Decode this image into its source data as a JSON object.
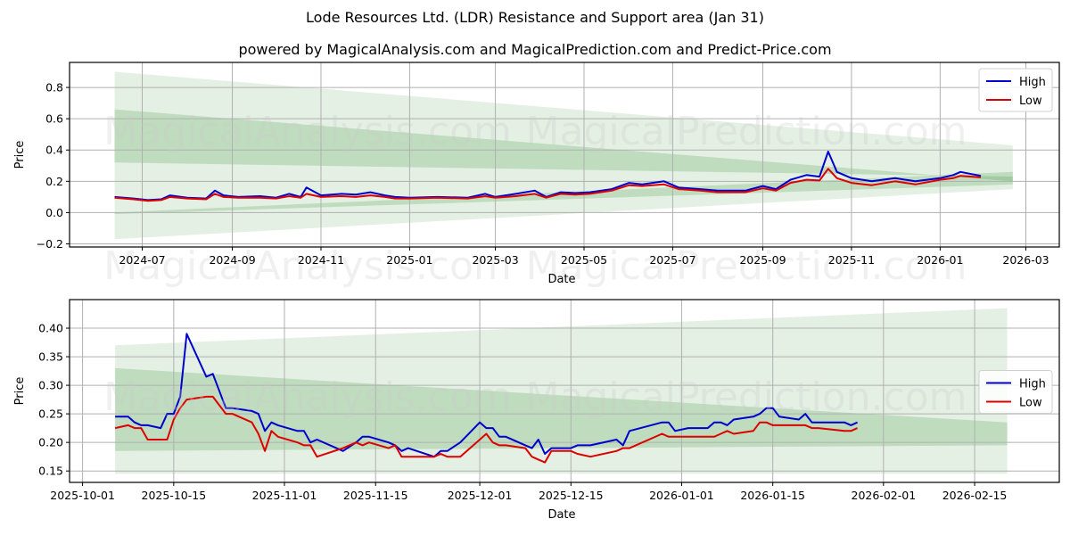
{
  "header": {
    "title": "Lode Resources Ltd. (LDR) Resistance and Support area (Jan 31)",
    "subtitle": "powered by MagicalAnalysis.com and MagicalPrediction.com and Predict-Price.com"
  },
  "watermarks": [
    "MagicalAnalysis.com",
    "MagicalPrediction.com"
  ],
  "colors": {
    "high": "#0000cc",
    "low": "#dd0000",
    "band": "#2e8b2e",
    "grid": "#b0b0b0"
  },
  "chart_data": [
    {
      "type": "line",
      "title": "",
      "xlabel": "Date",
      "ylabel": "Price",
      "ylim": [
        -0.22,
        0.96
      ],
      "xlim": [
        "2024-05-12",
        "2026-03-24"
      ],
      "grid": true,
      "legend_position": "upper right",
      "y_ticks": [
        "−0.2",
        "0.0",
        "0.2",
        "0.4",
        "0.6",
        "0.8"
      ],
      "y_tick_values": [
        -0.2,
        0.0,
        0.2,
        0.4,
        0.6,
        0.8
      ],
      "x_ticks": [
        "2024-07",
        "2024-09",
        "2024-11",
        "2025-01",
        "2025-03",
        "2025-05",
        "2025-07",
        "2025-09",
        "2025-11",
        "2026-01",
        "2026-03"
      ],
      "x_tick_dates": [
        "2024-07-01",
        "2024-09-01",
        "2024-11-01",
        "2025-01-01",
        "2025-03-01",
        "2025-05-01",
        "2025-07-01",
        "2025-09-01",
        "2025-11-01",
        "2026-01-01",
        "2026-03-01"
      ],
      "legend": [
        "High",
        "Low"
      ],
      "bands": [
        {
          "name": "outer",
          "x": [
            "2024-06-12",
            "2026-02-20"
          ],
          "upper": [
            0.9,
            0.43
          ],
          "lower": [
            -0.17,
            0.15
          ]
        },
        {
          "name": "resistance",
          "x": [
            "2024-06-12",
            "2026-02-20"
          ],
          "upper": [
            0.66,
            0.2
          ],
          "lower": [
            0.32,
            0.23
          ]
        },
        {
          "name": "support",
          "x": [
            "2024-06-12",
            "2026-02-20"
          ],
          "upper": [
            0.0,
            0.26
          ],
          "lower": [
            -0.01,
            0.18
          ]
        }
      ],
      "series": [
        {
          "name": "High",
          "x": [
            "2024-06-12",
            "2024-06-25",
            "2024-07-05",
            "2024-07-14",
            "2024-07-20",
            "2024-08-01",
            "2024-08-14",
            "2024-08-20",
            "2024-08-26",
            "2024-09-05",
            "2024-09-20",
            "2024-10-01",
            "2024-10-10",
            "2024-10-18",
            "2024-10-22",
            "2024-11-01",
            "2024-11-15",
            "2024-11-25",
            "2024-12-05",
            "2024-12-15",
            "2024-12-22",
            "2025-01-01",
            "2025-01-20",
            "2025-02-10",
            "2025-02-22",
            "2025-03-01",
            "2025-03-15",
            "2025-03-28",
            "2025-04-05",
            "2025-04-15",
            "2025-04-25",
            "2025-05-05",
            "2025-05-20",
            "2025-06-01",
            "2025-06-10",
            "2025-06-25",
            "2025-07-05",
            "2025-07-20",
            "2025-08-01",
            "2025-08-20",
            "2025-09-01",
            "2025-09-10",
            "2025-09-20",
            "2025-10-01",
            "2025-10-10",
            "2025-10-16",
            "2025-10-22",
            "2025-11-01",
            "2025-11-15",
            "2025-12-01",
            "2025-12-15",
            "2026-01-01",
            "2026-01-10",
            "2026-01-15",
            "2026-01-29"
          ],
          "values": [
            0.1,
            0.09,
            0.08,
            0.085,
            0.11,
            0.095,
            0.09,
            0.14,
            0.11,
            0.1,
            0.105,
            0.095,
            0.12,
            0.1,
            0.16,
            0.11,
            0.12,
            0.115,
            0.13,
            0.11,
            0.1,
            0.095,
            0.1,
            0.095,
            0.12,
            0.1,
            0.12,
            0.14,
            0.1,
            0.13,
            0.125,
            0.13,
            0.15,
            0.19,
            0.18,
            0.2,
            0.16,
            0.15,
            0.14,
            0.14,
            0.17,
            0.15,
            0.21,
            0.24,
            0.23,
            0.39,
            0.26,
            0.22,
            0.2,
            0.22,
            0.2,
            0.22,
            0.24,
            0.26,
            0.235
          ]
        },
        {
          "name": "Low",
          "x": [
            "2024-06-12",
            "2024-06-25",
            "2024-07-05",
            "2024-07-14",
            "2024-07-20",
            "2024-08-01",
            "2024-08-14",
            "2024-08-20",
            "2024-08-26",
            "2024-09-05",
            "2024-09-20",
            "2024-10-01",
            "2024-10-10",
            "2024-10-18",
            "2024-10-22",
            "2024-11-01",
            "2024-11-15",
            "2024-11-25",
            "2024-12-05",
            "2024-12-15",
            "2024-12-22",
            "2025-01-01",
            "2025-01-20",
            "2025-02-10",
            "2025-02-22",
            "2025-03-01",
            "2025-03-15",
            "2025-03-28",
            "2025-04-05",
            "2025-04-15",
            "2025-04-25",
            "2025-05-05",
            "2025-05-20",
            "2025-06-01",
            "2025-06-10",
            "2025-06-25",
            "2025-07-05",
            "2025-07-20",
            "2025-08-01",
            "2025-08-20",
            "2025-09-01",
            "2025-09-10",
            "2025-09-20",
            "2025-10-01",
            "2025-10-10",
            "2025-10-16",
            "2025-10-22",
            "2025-11-01",
            "2025-11-15",
            "2025-12-01",
            "2025-12-15",
            "2026-01-01",
            "2026-01-10",
            "2026-01-15",
            "2026-01-29"
          ],
          "values": [
            0.095,
            0.085,
            0.075,
            0.08,
            0.1,
            0.09,
            0.085,
            0.12,
            0.1,
            0.095,
            0.095,
            0.09,
            0.105,
            0.095,
            0.12,
            0.1,
            0.105,
            0.1,
            0.11,
            0.1,
            0.09,
            0.09,
            0.095,
            0.09,
            0.105,
            0.095,
            0.105,
            0.12,
            0.095,
            0.12,
            0.115,
            0.12,
            0.14,
            0.175,
            0.17,
            0.18,
            0.15,
            0.14,
            0.13,
            0.13,
            0.155,
            0.14,
            0.19,
            0.21,
            0.205,
            0.28,
            0.22,
            0.19,
            0.175,
            0.2,
            0.18,
            0.21,
            0.22,
            0.235,
            0.225
          ]
        }
      ]
    },
    {
      "type": "line",
      "title": "",
      "xlabel": "Date",
      "ylabel": "Price",
      "ylim": [
        0.13,
        0.45
      ],
      "xlim": [
        "2025-09-29",
        "2026-02-28"
      ],
      "grid": true,
      "legend_position": "center right",
      "y_ticks": [
        "0.15",
        "0.20",
        "0.25",
        "0.30",
        "0.35",
        "0.40"
      ],
      "y_tick_values": [
        0.15,
        0.2,
        0.25,
        0.3,
        0.35,
        0.4
      ],
      "x_ticks": [
        "2025-10-01",
        "2025-10-15",
        "2025-11-01",
        "2025-11-15",
        "2025-12-01",
        "2025-12-15",
        "2026-01-01",
        "2026-01-15",
        "2026-02-01",
        "2026-02-15"
      ],
      "x_tick_dates": [
        "2025-10-01",
        "2025-10-15",
        "2025-11-01",
        "2025-11-15",
        "2025-12-01",
        "2025-12-15",
        "2026-01-01",
        "2026-01-15",
        "2026-02-01",
        "2026-02-15"
      ],
      "legend": [
        "High",
        "Low"
      ],
      "bands": [
        {
          "name": "outer",
          "x": [
            "2025-10-06",
            "2026-02-20"
          ],
          "upper": [
            0.37,
            0.435
          ],
          "lower": [
            0.145,
            0.145
          ]
        },
        {
          "name": "resistance",
          "x": [
            "2025-10-06",
            "2026-02-20"
          ],
          "upper": [
            0.33,
            0.235
          ],
          "lower": [
            0.3,
            0.215
          ]
        },
        {
          "name": "support",
          "x": [
            "2025-10-06",
            "2026-02-20"
          ],
          "upper": [
            0.3,
            0.215
          ],
          "lower": [
            0.185,
            0.195
          ]
        }
      ],
      "series": [
        {
          "name": "High",
          "x": [
            "2025-10-06",
            "2025-10-08",
            "2025-10-09",
            "2025-10-10",
            "2025-10-11",
            "2025-10-13",
            "2025-10-14",
            "2025-10-15",
            "2025-10-16",
            "2025-10-17",
            "2025-10-20",
            "2025-10-21",
            "2025-10-23",
            "2025-10-24",
            "2025-10-27",
            "2025-10-28",
            "2025-10-29",
            "2025-10-30",
            "2025-10-31",
            "2025-11-03",
            "2025-11-04",
            "2025-11-05",
            "2025-11-06",
            "2025-11-10",
            "2025-11-12",
            "2025-11-13",
            "2025-11-14",
            "2025-11-17",
            "2025-11-18",
            "2025-11-19",
            "2025-11-20",
            "2025-11-24",
            "2025-11-25",
            "2025-11-26",
            "2025-11-28",
            "2025-12-01",
            "2025-12-02",
            "2025-12-03",
            "2025-12-04",
            "2025-12-05",
            "2025-12-08",
            "2025-12-09",
            "2025-12-10",
            "2025-12-11",
            "2025-12-12",
            "2025-12-15",
            "2025-12-16",
            "2025-12-18",
            "2025-12-22",
            "2025-12-23",
            "2025-12-24",
            "2025-12-29",
            "2025-12-30",
            "2025-12-31",
            "2026-01-02",
            "2026-01-05",
            "2026-01-06",
            "2026-01-07",
            "2026-01-08",
            "2026-01-09",
            "2026-01-12",
            "2026-01-13",
            "2026-01-14",
            "2026-01-15",
            "2026-01-16",
            "2026-01-19",
            "2026-01-20",
            "2026-01-21",
            "2026-01-22",
            "2026-01-26",
            "2026-01-27",
            "2026-01-28"
          ],
          "values": [
            0.245,
            0.245,
            0.235,
            0.23,
            0.23,
            0.225,
            0.25,
            0.25,
            0.28,
            0.39,
            0.315,
            0.32,
            0.26,
            0.26,
            0.255,
            0.25,
            0.22,
            0.235,
            0.23,
            0.22,
            0.22,
            0.2,
            0.205,
            0.185,
            0.2,
            0.21,
            0.21,
            0.2,
            0.195,
            0.185,
            0.19,
            0.175,
            0.185,
            0.185,
            0.2,
            0.235,
            0.225,
            0.225,
            0.21,
            0.21,
            0.195,
            0.19,
            0.205,
            0.18,
            0.19,
            0.19,
            0.195,
            0.195,
            0.205,
            0.195,
            0.22,
            0.235,
            0.235,
            0.22,
            0.225,
            0.225,
            0.235,
            0.235,
            0.23,
            0.24,
            0.245,
            0.25,
            0.26,
            0.26,
            0.245,
            0.24,
            0.25,
            0.235,
            0.235,
            0.235,
            0.23,
            0.235
          ]
        },
        {
          "name": "Low",
          "x": [
            "2025-10-06",
            "2025-10-08",
            "2025-10-09",
            "2025-10-10",
            "2025-10-11",
            "2025-10-13",
            "2025-10-14",
            "2025-10-15",
            "2025-10-16",
            "2025-10-17",
            "2025-10-20",
            "2025-10-21",
            "2025-10-23",
            "2025-10-24",
            "2025-10-27",
            "2025-10-28",
            "2025-10-29",
            "2025-10-30",
            "2025-10-31",
            "2025-11-03",
            "2025-11-04",
            "2025-11-05",
            "2025-11-06",
            "2025-11-10",
            "2025-11-12",
            "2025-11-13",
            "2025-11-14",
            "2025-11-17",
            "2025-11-18",
            "2025-11-19",
            "2025-11-20",
            "2025-11-24",
            "2025-11-25",
            "2025-11-26",
            "2025-11-28",
            "2025-12-01",
            "2025-12-02",
            "2025-12-03",
            "2025-12-04",
            "2025-12-05",
            "2025-12-08",
            "2025-12-09",
            "2025-12-10",
            "2025-12-11",
            "2025-12-12",
            "2025-12-15",
            "2025-12-16",
            "2025-12-18",
            "2025-12-22",
            "2025-12-23",
            "2025-12-24",
            "2025-12-29",
            "2025-12-30",
            "2025-12-31",
            "2026-01-02",
            "2026-01-05",
            "2026-01-06",
            "2026-01-07",
            "2026-01-08",
            "2026-01-09",
            "2026-01-12",
            "2026-01-13",
            "2026-01-14",
            "2026-01-15",
            "2026-01-16",
            "2026-01-19",
            "2026-01-20",
            "2026-01-21",
            "2026-01-22",
            "2026-01-26",
            "2026-01-27",
            "2026-01-28"
          ],
          "values": [
            0.225,
            0.23,
            0.225,
            0.225,
            0.205,
            0.205,
            0.205,
            0.24,
            0.26,
            0.275,
            0.28,
            0.28,
            0.25,
            0.25,
            0.235,
            0.215,
            0.185,
            0.22,
            0.21,
            0.2,
            0.195,
            0.195,
            0.175,
            0.19,
            0.2,
            0.195,
            0.2,
            0.19,
            0.195,
            0.175,
            0.175,
            0.175,
            0.18,
            0.175,
            0.175,
            0.205,
            0.215,
            0.2,
            0.195,
            0.195,
            0.19,
            0.175,
            0.17,
            0.165,
            0.185,
            0.185,
            0.18,
            0.175,
            0.185,
            0.19,
            0.19,
            0.215,
            0.21,
            0.21,
            0.21,
            0.21,
            0.21,
            0.215,
            0.22,
            0.215,
            0.22,
            0.235,
            0.235,
            0.23,
            0.23,
            0.23,
            0.23,
            0.225,
            0.225,
            0.22,
            0.22,
            0.225
          ]
        }
      ]
    }
  ]
}
